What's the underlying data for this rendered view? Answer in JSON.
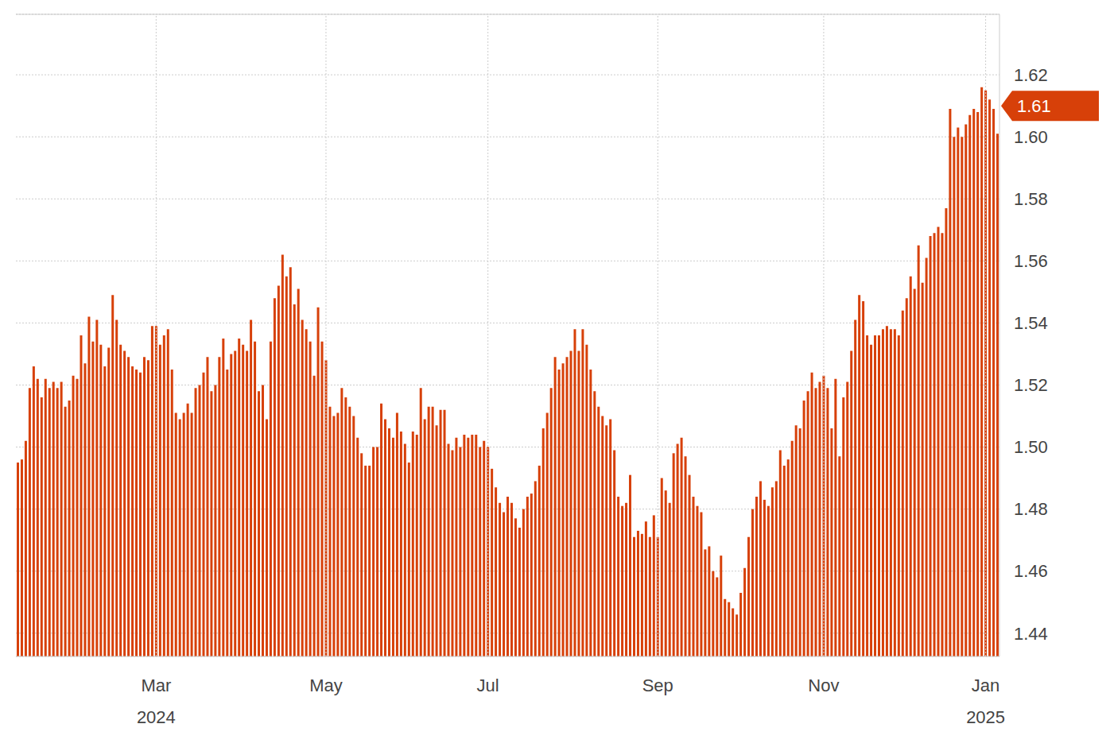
{
  "chart_data": {
    "type": "bar",
    "categories": [
      null,
      null,
      null,
      null,
      null,
      null,
      null,
      null,
      null,
      null,
      null,
      null,
      null,
      null,
      null,
      null,
      null,
      null,
      null,
      null,
      null,
      null,
      null,
      null,
      null,
      null,
      null,
      null,
      null,
      null,
      null,
      null,
      null,
      null,
      null,
      "Mar 2024",
      null,
      null,
      null,
      null,
      null,
      null,
      null,
      null,
      null,
      null,
      null,
      null,
      null,
      null,
      null,
      null,
      null,
      null,
      null,
      null,
      null,
      null,
      null,
      null,
      null,
      null,
      null,
      null,
      null,
      null,
      null,
      null,
      null,
      null,
      null,
      null,
      null,
      null,
      null,
      null,
      null,
      null,
      "May",
      null,
      null,
      null,
      null,
      null,
      null,
      null,
      null,
      null,
      null,
      null,
      null,
      null,
      null,
      null,
      null,
      null,
      null,
      null,
      null,
      null,
      null,
      null,
      null,
      null,
      null,
      null,
      null,
      null,
      null,
      null,
      null,
      null,
      null,
      null,
      null,
      null,
      null,
      null,
      null,
      "Jul",
      null,
      null,
      null,
      null,
      null,
      null,
      null,
      null,
      null,
      null,
      null,
      null,
      null,
      null,
      null,
      null,
      null,
      null,
      null,
      null,
      null,
      null,
      null,
      null,
      null,
      null,
      null,
      null,
      null,
      null,
      null,
      null,
      null,
      null,
      null,
      null,
      null,
      null,
      null,
      null,
      null,
      null,
      "Sep",
      null,
      null,
      null,
      null,
      null,
      null,
      null,
      null,
      null,
      null,
      null,
      null,
      null,
      null,
      null,
      null,
      null,
      null,
      null,
      null,
      null,
      null,
      null,
      null,
      null,
      null,
      null,
      null,
      null,
      null,
      null,
      null,
      null,
      null,
      null,
      null,
      null,
      null,
      null,
      null,
      null,
      "Nov",
      null,
      null,
      null,
      null,
      null,
      null,
      null,
      null,
      null,
      null,
      null,
      null,
      null,
      null,
      null,
      null,
      null,
      null,
      null,
      null,
      null,
      null,
      null,
      null,
      null,
      null,
      null,
      null,
      null,
      null,
      null,
      null,
      null,
      null,
      null,
      null,
      null,
      null,
      null,
      null,
      "Jan 2025",
      null,
      null,
      null
    ],
    "values": [
      1.495,
      1.496,
      1.502,
      1.519,
      1.526,
      1.522,
      1.516,
      1.522,
      1.519,
      1.521,
      1.519,
      1.521,
      1.513,
      1.515,
      1.523,
      1.522,
      1.536,
      1.527,
      1.542,
      1.534,
      1.541,
      1.533,
      1.526,
      1.532,
      1.549,
      1.541,
      1.533,
      1.531,
      1.529,
      1.526,
      1.525,
      1.524,
      1.529,
      1.528,
      1.539,
      1.539,
      1.533,
      1.536,
      1.538,
      1.525,
      1.511,
      1.509,
      1.511,
      1.514,
      1.511,
      1.519,
      1.52,
      1.524,
      1.529,
      1.518,
      1.52,
      1.529,
      1.535,
      1.525,
      1.53,
      1.531,
      1.535,
      1.533,
      1.531,
      1.541,
      1.534,
      1.518,
      1.52,
      1.509,
      1.534,
      1.548,
      1.552,
      1.562,
      1.555,
      1.558,
      1.546,
      1.551,
      1.541,
      1.538,
      1.534,
      1.523,
      1.545,
      1.534,
      1.528,
      1.513,
      1.51,
      1.511,
      1.519,
      1.516,
      1.513,
      1.51,
      1.503,
      1.498,
      1.494,
      1.494,
      1.5,
      1.5,
      1.514,
      1.509,
      1.506,
      1.503,
      1.511,
      1.505,
      1.501,
      1.495,
      1.505,
      1.504,
      1.519,
      1.509,
      1.513,
      1.513,
      1.507,
      1.512,
      1.512,
      1.501,
      1.499,
      1.503,
      1.5,
      1.504,
      1.503,
      1.504,
      1.504,
      1.5,
      1.502,
      1.5,
      1.493,
      1.487,
      1.482,
      1.479,
      1.484,
      1.482,
      1.477,
      1.474,
      1.48,
      1.484,
      1.485,
      1.489,
      1.494,
      1.506,
      1.511,
      1.519,
      1.529,
      1.525,
      1.527,
      1.529,
      1.531,
      1.538,
      1.531,
      1.538,
      1.533,
      1.525,
      1.518,
      1.513,
      1.51,
      1.507,
      1.509,
      1.499,
      1.484,
      1.481,
      1.482,
      1.491,
      1.471,
      1.473,
      1.472,
      1.476,
      1.471,
      1.478,
      1.471,
      1.49,
      1.486,
      1.482,
      1.498,
      1.501,
      1.503,
      1.497,
      1.491,
      1.484,
      1.481,
      1.479,
      1.467,
      1.468,
      1.46,
      1.458,
      1.465,
      1.451,
      1.45,
      1.448,
      1.446,
      1.453,
      1.461,
      1.471,
      1.48,
      1.484,
      1.489,
      1.483,
      1.481,
      1.487,
      1.489,
      1.499,
      1.494,
      1.496,
      1.502,
      1.507,
      1.506,
      1.515,
      1.518,
      1.524,
      1.519,
      1.521,
      1.523,
      1.519,
      1.506,
      1.522,
      1.497,
      1.516,
      1.521,
      1.531,
      1.541,
      1.549,
      1.547,
      1.536,
      1.533,
      1.536,
      1.536,
      1.538,
      1.539,
      1.538,
      1.538,
      1.536,
      1.544,
      1.548,
      1.555,
      1.551,
      1.565,
      1.553,
      1.561,
      1.568,
      1.569,
      1.571,
      1.569,
      1.577,
      1.609,
      1.6,
      1.603,
      1.6,
      1.604,
      1.607,
      1.609,
      1.608,
      1.616,
      1.615,
      1.612,
      1.609,
      1.601
    ],
    "color": "#d74009",
    "ylim": [
      1.4325,
      1.6395
    ],
    "yticks": [
      1.44,
      1.46,
      1.48,
      {
        "value": 1.5,
        "label": "1.50"
      },
      1.52,
      1.54,
      1.56,
      1.58,
      {
        "value": 1.6,
        "label": "1.60"
      },
      1.62
    ],
    "grid": true,
    "annotations": [
      {
        "label": "1.61",
        "value": 1.61
      }
    ]
  }
}
